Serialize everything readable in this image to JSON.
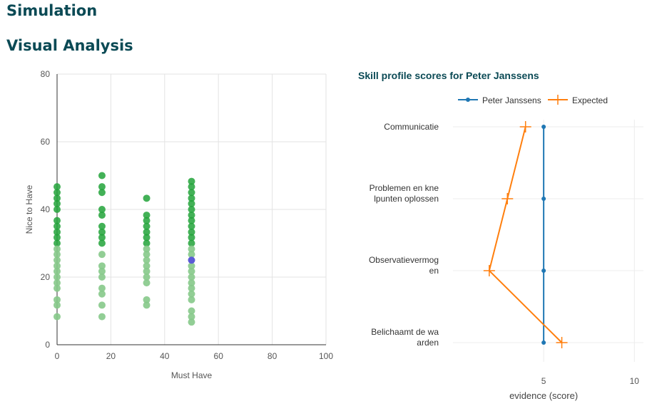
{
  "page": {
    "title": "Simulation",
    "section_title": "Visual Analysis"
  },
  "chart_data": [
    {
      "type": "scatter",
      "title": "",
      "xlabel": "Must Have",
      "ylabel": "Nice to Have",
      "xlim": [
        0,
        100
      ],
      "ylim": [
        0,
        80
      ],
      "xticks": [
        0,
        20,
        40,
        60,
        80,
        100
      ],
      "yticks": [
        0,
        20,
        40,
        60,
        80
      ],
      "grid": true,
      "colors": {
        "points_high": "#22a33a",
        "points_low": "#86c98a",
        "highlight": "#5b5bd6"
      },
      "highlight_point": {
        "x": 50,
        "y": 25
      },
      "points": [
        {
          "x": 0,
          "y": 46.7
        },
        {
          "x": 0,
          "y": 45
        },
        {
          "x": 0,
          "y": 43.3
        },
        {
          "x": 0,
          "y": 41.7
        },
        {
          "x": 0,
          "y": 40
        },
        {
          "x": 0,
          "y": 36.7
        },
        {
          "x": 0,
          "y": 35
        },
        {
          "x": 0,
          "y": 33.3
        },
        {
          "x": 0,
          "y": 31.7
        },
        {
          "x": 0,
          "y": 30
        },
        {
          "x": 0,
          "y": 28.3
        },
        {
          "x": 0,
          "y": 26.7
        },
        {
          "x": 0,
          "y": 25
        },
        {
          "x": 0,
          "y": 23.3
        },
        {
          "x": 0,
          "y": 21.7
        },
        {
          "x": 0,
          "y": 20
        },
        {
          "x": 0,
          "y": 18.3
        },
        {
          "x": 0,
          "y": 16.7
        },
        {
          "x": 0,
          "y": 13.3
        },
        {
          "x": 0,
          "y": 11.7
        },
        {
          "x": 0,
          "y": 8.3
        },
        {
          "x": 16.7,
          "y": 50
        },
        {
          "x": 16.7,
          "y": 46.7
        },
        {
          "x": 16.7,
          "y": 45
        },
        {
          "x": 16.7,
          "y": 40
        },
        {
          "x": 16.7,
          "y": 38.3
        },
        {
          "x": 16.7,
          "y": 35
        },
        {
          "x": 16.7,
          "y": 33.3
        },
        {
          "x": 16.7,
          "y": 31.7
        },
        {
          "x": 16.7,
          "y": 30
        },
        {
          "x": 16.7,
          "y": 26.7
        },
        {
          "x": 16.7,
          "y": 23.3
        },
        {
          "x": 16.7,
          "y": 21.7
        },
        {
          "x": 16.7,
          "y": 20
        },
        {
          "x": 16.7,
          "y": 16.7
        },
        {
          "x": 16.7,
          "y": 15
        },
        {
          "x": 16.7,
          "y": 11.7
        },
        {
          "x": 16.7,
          "y": 8.3
        },
        {
          "x": 33.3,
          "y": 43.3
        },
        {
          "x": 33.3,
          "y": 38.3
        },
        {
          "x": 33.3,
          "y": 36.7
        },
        {
          "x": 33.3,
          "y": 35
        },
        {
          "x": 33.3,
          "y": 33.3
        },
        {
          "x": 33.3,
          "y": 31.7
        },
        {
          "x": 33.3,
          "y": 30
        },
        {
          "x": 33.3,
          "y": 28.3
        },
        {
          "x": 33.3,
          "y": 26.7
        },
        {
          "x": 33.3,
          "y": 25
        },
        {
          "x": 33.3,
          "y": 23.3
        },
        {
          "x": 33.3,
          "y": 21.7
        },
        {
          "x": 33.3,
          "y": 20
        },
        {
          "x": 33.3,
          "y": 18.3
        },
        {
          "x": 33.3,
          "y": 13.3
        },
        {
          "x": 33.3,
          "y": 11.7
        },
        {
          "x": 50,
          "y": 48.3
        },
        {
          "x": 50,
          "y": 46.7
        },
        {
          "x": 50,
          "y": 45
        },
        {
          "x": 50,
          "y": 43.3
        },
        {
          "x": 50,
          "y": 41.7
        },
        {
          "x": 50,
          "y": 40
        },
        {
          "x": 50,
          "y": 38.3
        },
        {
          "x": 50,
          "y": 36.7
        },
        {
          "x": 50,
          "y": 35
        },
        {
          "x": 50,
          "y": 33.3
        },
        {
          "x": 50,
          "y": 31.7
        },
        {
          "x": 50,
          "y": 30
        },
        {
          "x": 50,
          "y": 28.3
        },
        {
          "x": 50,
          "y": 26.7
        },
        {
          "x": 50,
          "y": 23.3
        },
        {
          "x": 50,
          "y": 21.7
        },
        {
          "x": 50,
          "y": 20
        },
        {
          "x": 50,
          "y": 18.3
        },
        {
          "x": 50,
          "y": 16.7
        },
        {
          "x": 50,
          "y": 15
        },
        {
          "x": 50,
          "y": 13.3
        },
        {
          "x": 50,
          "y": 10
        },
        {
          "x": 50,
          "y": 8.3
        },
        {
          "x": 50,
          "y": 6.7
        }
      ]
    },
    {
      "type": "line",
      "title": "Skill profile scores for Peter Janssens",
      "xlabel": "evidence (score)",
      "xlim": [
        0,
        10.5
      ],
      "xticks": [
        5,
        10
      ],
      "grid": true,
      "legend_position": "top",
      "categories": [
        {
          "label_lines": [
            "Communicatie"
          ]
        },
        {
          "label_lines": [
            "Problemen en kne",
            "lpunten oplossen"
          ]
        },
        {
          "label_lines": [
            "Observatievermog",
            "en"
          ]
        },
        {
          "label_lines": [
            "Belichaamt de wa",
            "arden"
          ]
        }
      ],
      "series": [
        {
          "name": "Peter Janssens",
          "values": [
            5,
            5,
            5,
            5
          ],
          "color": "#1f77b4",
          "marker": "dot"
        },
        {
          "name": "Expected",
          "values": [
            4,
            3,
            2,
            6
          ],
          "color": "#ff7f0e",
          "marker": "cross"
        }
      ]
    }
  ]
}
